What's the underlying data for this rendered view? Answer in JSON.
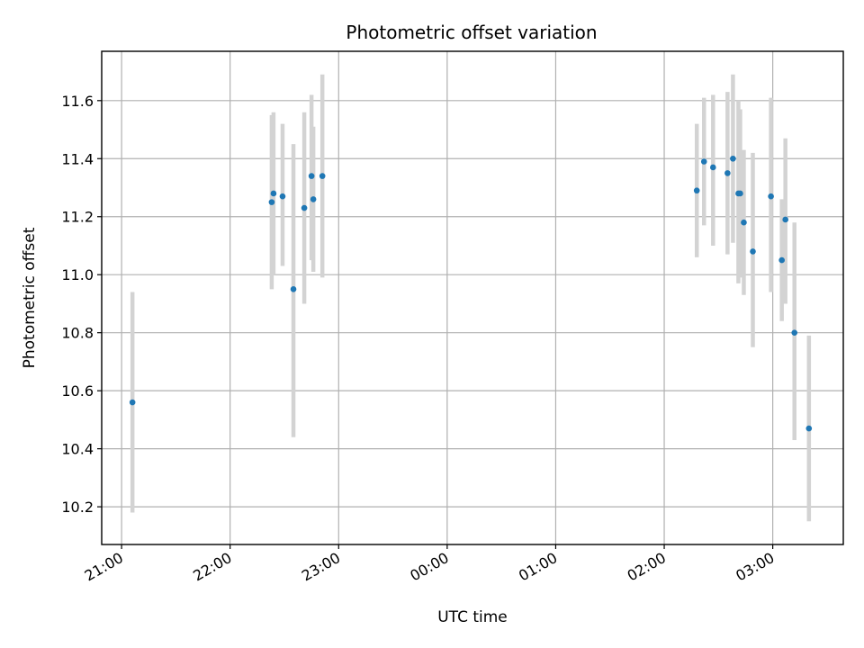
{
  "chart_data": {
    "type": "scatter",
    "title": "Photometric offset variation",
    "xlabel": "UTC time",
    "ylabel": "Photometric offset",
    "x_axis_type": "time",
    "x_tick_labels": [
      "21:00",
      "22:00",
      "23:00",
      "00:00",
      "01:00",
      "02:00",
      "03:00"
    ],
    "x_tick_values": [
      "21:00",
      "22:00",
      "23:00",
      "00:00",
      "01:00",
      "02:00",
      "03:00"
    ],
    "xlim": [
      "20:49",
      "03:39"
    ],
    "ylim": [
      10.07,
      11.77
    ],
    "y_ticks": [
      10.2,
      10.4,
      10.6,
      10.8,
      11.0,
      11.2,
      11.4,
      11.6
    ],
    "y_tick_labels": [
      "10.2",
      "10.4",
      "10.6",
      "10.8",
      "11.0",
      "11.2",
      "11.4",
      "11.6"
    ],
    "grid": true,
    "marker_color": "#1f77b4",
    "errorbar_color": "#d3d3d3",
    "points": [
      {
        "x": "21:06",
        "y": 10.56,
        "ylow": 10.18,
        "yhigh": 10.94
      },
      {
        "x": "22:23",
        "y": 11.25,
        "ylow": 10.95,
        "yhigh": 11.55
      },
      {
        "x": "22:24",
        "y": 11.28,
        "ylow": 11.0,
        "yhigh": 11.56
      },
      {
        "x": "22:29",
        "y": 11.27,
        "ylow": 11.03,
        "yhigh": 11.52
      },
      {
        "x": "22:35",
        "y": 10.95,
        "ylow": 10.44,
        "yhigh": 11.45
      },
      {
        "x": "22:41",
        "y": 11.23,
        "ylow": 10.9,
        "yhigh": 11.56
      },
      {
        "x": "22:45",
        "y": 11.34,
        "ylow": 11.05,
        "yhigh": 11.62
      },
      {
        "x": "22:46",
        "y": 11.26,
        "ylow": 11.01,
        "yhigh": 11.51
      },
      {
        "x": "22:51",
        "y": 11.34,
        "ylow": 10.99,
        "yhigh": 11.69
      },
      {
        "x": "02:18",
        "y": 11.29,
        "ylow": 11.06,
        "yhigh": 11.52
      },
      {
        "x": "02:22",
        "y": 11.39,
        "ylow": 11.17,
        "yhigh": 11.61
      },
      {
        "x": "02:27",
        "y": 11.37,
        "ylow": 11.1,
        "yhigh": 11.62
      },
      {
        "x": "02:35",
        "y": 11.35,
        "ylow": 11.07,
        "yhigh": 11.63
      },
      {
        "x": "02:38",
        "y": 11.4,
        "ylow": 11.11,
        "yhigh": 11.69
      },
      {
        "x": "02:41",
        "y": 11.28,
        "ylow": 10.97,
        "yhigh": 11.6
      },
      {
        "x": "02:42",
        "y": 11.28,
        "ylow": 10.99,
        "yhigh": 11.57
      },
      {
        "x": "02:44",
        "y": 11.18,
        "ylow": 10.93,
        "yhigh": 11.43
      },
      {
        "x": "02:49",
        "y": 11.08,
        "ylow": 10.75,
        "yhigh": 11.42
      },
      {
        "x": "02:59",
        "y": 11.27,
        "ylow": 10.94,
        "yhigh": 11.61
      },
      {
        "x": "03:05",
        "y": 11.05,
        "ylow": 10.84,
        "yhigh": 11.26
      },
      {
        "x": "03:07",
        "y": 11.19,
        "ylow": 10.9,
        "yhigh": 11.47
      },
      {
        "x": "03:12",
        "y": 10.8,
        "ylow": 10.43,
        "yhigh": 11.18
      },
      {
        "x": "03:20",
        "y": 10.47,
        "ylow": 10.15,
        "yhigh": 10.79
      }
    ]
  }
}
